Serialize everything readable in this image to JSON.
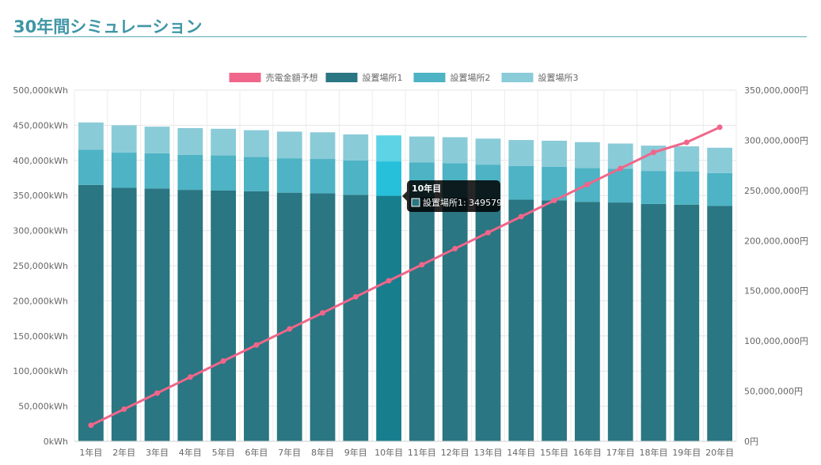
{
  "page": {
    "title": "30年間シミュレーション"
  },
  "chart_data": {
    "type": "bar",
    "stacked": true,
    "categories": [
      "1年目",
      "2年目",
      "3年目",
      "4年目",
      "5年目",
      "6年目",
      "7年目",
      "8年目",
      "9年目",
      "10年目",
      "11年目",
      "12年目",
      "13年目",
      "14年目",
      "15年目",
      "16年目",
      "17年目",
      "18年目",
      "19年目",
      "20年目"
    ],
    "series": [
      {
        "name": "売電金額予想",
        "type": "line",
        "axis": "right",
        "color": "#f0668a",
        "values": [
          16000000,
          32000000,
          48000000,
          64000000,
          80000000,
          96000000,
          112000000,
          128000000,
          144000000,
          160000000,
          176000000,
          192000000,
          208000000,
          224000000,
          240000000,
          256000000,
          272000000,
          288000000,
          298000000,
          313000000
        ]
      },
      {
        "name": "設置場所1",
        "type": "bar",
        "axis": "left",
        "color": "#2a7682",
        "values": [
          365000,
          361000,
          360000,
          358000,
          357000,
          356000,
          354000,
          353000,
          351000,
          349579,
          348000,
          347000,
          346000,
          344000,
          343000,
          341000,
          340000,
          338000,
          337000,
          335000
        ]
      },
      {
        "name": "設置場所2",
        "type": "bar",
        "axis": "left",
        "color": "#4db3c5",
        "values": [
          50000,
          50000,
          50000,
          50000,
          50000,
          49000,
          49000,
          49000,
          49000,
          49000,
          49000,
          49000,
          48000,
          48000,
          48000,
          48000,
          48000,
          47000,
          47000,
          47000
        ]
      },
      {
        "name": "設置場所3",
        "type": "bar",
        "axis": "left",
        "color": "#8acbd8",
        "values": [
          39000,
          39000,
          38000,
          38000,
          38000,
          38000,
          38000,
          38000,
          37000,
          37000,
          37000,
          37000,
          37000,
          37000,
          37000,
          37000,
          36000,
          36000,
          36000,
          36000
        ]
      }
    ],
    "y_left": {
      "min": 0,
      "max": 500000,
      "step": 50000,
      "tick_labels": [
        "0kWh",
        "50,000kWh",
        "100,000kWh",
        "150,000kWh",
        "200,000kWh",
        "250,000kWh",
        "300,000kWh",
        "350,000kWh",
        "400,000kWh",
        "450,000kWh",
        "500,000kWh"
      ]
    },
    "y_right": {
      "min": 0,
      "max": 350000000,
      "step": 50000000,
      "tick_labels": [
        "0円",
        "50,000,000円",
        "100,000,000円",
        "150,000,000円",
        "200,000,000円",
        "250,000,000円",
        "300,000,000円",
        "350,000,000円"
      ]
    },
    "grid": true,
    "legend": {
      "position": "top"
    },
    "highlight_index": 9,
    "highlight_colors": [
      "#177e8e",
      "#26c0da",
      "#5ed3e6"
    ],
    "tooltip": {
      "title": "10年目",
      "label": "設置場所1: 349579",
      "swatch": "#2a7682"
    }
  }
}
